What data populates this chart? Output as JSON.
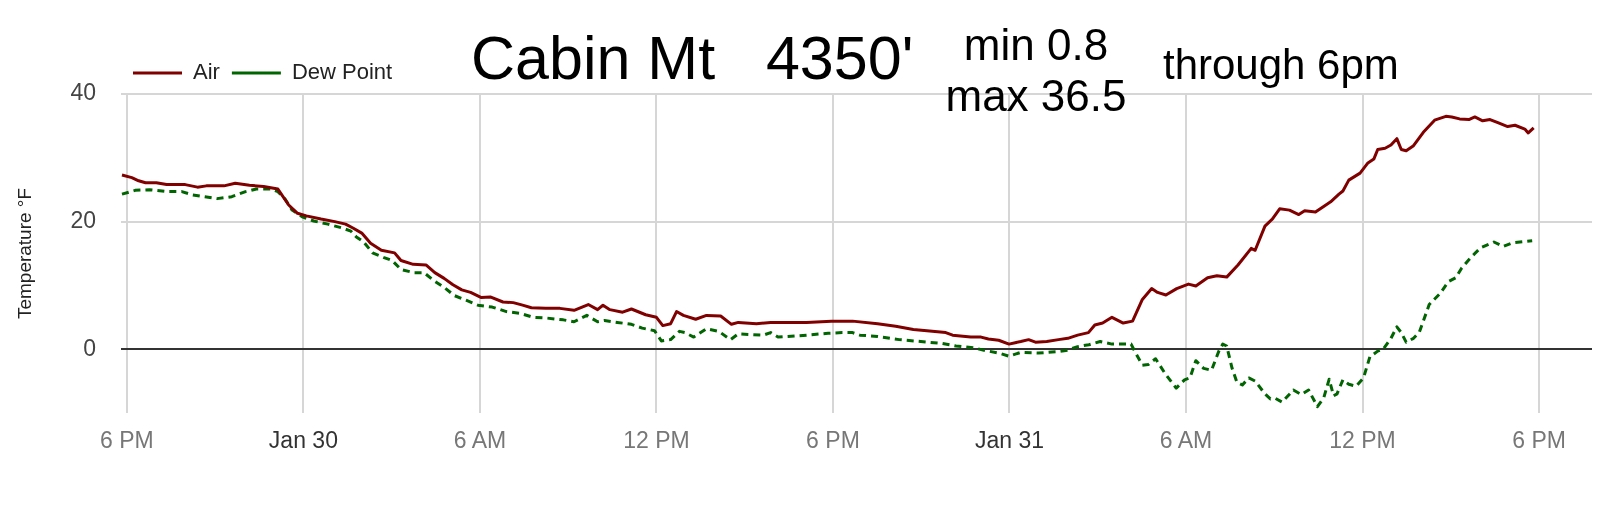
{
  "chart_data": {
    "type": "line",
    "title": "Cabin Mt   4350'",
    "subtitle": "through 6pm",
    "annotations": [
      "min 0.8",
      "max 36.5"
    ],
    "ylabel": "Temperature °F",
    "series": [
      {
        "name": "Air",
        "color": "#800000",
        "line_style": "solid",
        "x": [
          "--01-29T17:50",
          "--01-29T18:10",
          "--01-29T18:24",
          "--01-29T18:38",
          "--01-29T19:00",
          "--01-29T19:21",
          "--01-29T19:59",
          "--01-29T20:24",
          "--01-29T20:42",
          "--01-29T21:18",
          "--01-29T21:41",
          "--01-29T22:10",
          "--01-29T22:39",
          "--01-29T23:08",
          "--01-29T23:30",
          "--01-29T23:48",
          "--01-30T00:06",
          "--01-30T00:36",
          "--01-30T01:04",
          "--01-30T01:26",
          "--01-30T01:41",
          "--01-30T01:59",
          "--01-30T02:17",
          "--01-30T02:39",
          "--01-30T03:06",
          "--01-30T03:19",
          "--01-30T03:44",
          "--01-30T04:10",
          "--01-30T04:28",
          "--01-30T04:47",
          "--01-30T05:05",
          "--01-30T05:23",
          "--01-30T05:41",
          "--01-30T06:03",
          "--01-30T06:21",
          "--01-30T06:47",
          "--01-30T07:08",
          "--01-30T07:27",
          "--01-30T07:45",
          "--01-30T08:14",
          "--01-30T08:43",
          "--01-30T09:12",
          "--01-30T09:41",
          "--01-30T10:00",
          "--01-30T10:11",
          "--01-30T10:25",
          "--01-30T10:51",
          "--01-30T11:09",
          "--01-30T11:38",
          "--01-30T12:00",
          "--01-30T12:13",
          "--01-30T12:29",
          "--01-30T12:41",
          "--01-30T12:55",
          "--01-30T13:20",
          "--01-30T13:42",
          "--01-30T14:11",
          "--01-30T14:33",
          "--01-30T14:47",
          "--01-30T15:24",
          "--01-30T15:53",
          "--01-30T17:06",
          "--01-30T17:57",
          "--01-30T18:40",
          "--01-30T19:31",
          "--01-30T20:08",
          "--01-30T20:44",
          "--01-30T21:50",
          "--01-30T22:04",
          "--01-30T22:41",
          "--01-30T23:02",
          "--01-30T23:17",
          "--01-30T23:38",
          "--01-30T23:59",
          "--01-31T00:23",
          "--01-31T00:39",
          "--01-31T00:53",
          "--01-31T01:16",
          "--01-31T01:40",
          "--01-31T01:59",
          "--01-31T02:19",
          "--01-31T02:41",
          "--01-31T02:54",
          "--01-31T03:10",
          "--01-31T03:29",
          "--01-31T03:52",
          "--01-31T04:11",
          "--01-31T04:31",
          "--01-31T04:50",
          "--01-31T05:02",
          "--01-31T05:19",
          "--01-31T05:41",
          "--01-31T06:05",
          "--01-31T06:20",
          "--01-31T06:44",
          "--01-31T07:03",
          "--01-31T07:23",
          "--01-31T07:46",
          "--01-31T08:13",
          "--01-31T08:21",
          "--01-31T08:41",
          "--01-31T08:56",
          "--01-31T09:11",
          "--01-31T09:31",
          "--01-31T09:50",
          "--01-31T10:02",
          "--01-31T10:24",
          "--01-31T10:43",
          "--01-31T10:55",
          "--01-31T11:12",
          "--01-31T11:20",
          "--01-31T11:32",
          "--01-31T11:55",
          "--01-31T12:11",
          "--01-31T12:23",
          "--01-31T12:31",
          "--01-31T12:46",
          "--01-31T12:58",
          "--01-31T13:10",
          "--01-31T13:19",
          "--01-31T13:29",
          "--01-31T13:44",
          "--01-31T14:04",
          "--01-31T14:27",
          "--01-31T14:50",
          "--01-31T15:02",
          "--01-31T15:18",
          "--01-31T15:37",
          "--01-31T15:49",
          "--01-31T16:05",
          "--01-31T16:20",
          "--01-31T16:36",
          "--01-31T16:56",
          "--01-31T17:11",
          "--01-31T17:31",
          "--01-31T17:38",
          "--01-31T17:49"
        ],
        "values": [
          27.3,
          26.9,
          26.4,
          26.1,
          26.1,
          25.8,
          25.8,
          25.4,
          25.6,
          25.6,
          26.0,
          25.7,
          25.5,
          25.1,
          22.6,
          21.3,
          20.9,
          20.4,
          20.0,
          19.6,
          19.0,
          18.2,
          16.6,
          15.5,
          15.1,
          13.9,
          13.3,
          13.2,
          12.0,
          11.1,
          10.1,
          9.3,
          8.9,
          8.1,
          8.2,
          7.4,
          7.3,
          6.9,
          6.5,
          6.4,
          6.4,
          6.1,
          7.0,
          6.2,
          6.9,
          6.2,
          5.8,
          6.3,
          5.4,
          5.0,
          3.7,
          4.0,
          5.9,
          5.3,
          4.7,
          5.3,
          5.2,
          3.9,
          4.2,
          4.0,
          4.2,
          4.2,
          4.4,
          4.4,
          4.0,
          3.6,
          3.1,
          2.6,
          2.2,
          1.9,
          1.9,
          1.6,
          1.4,
          0.8,
          1.2,
          1.5,
          1.1,
          1.2,
          1.5,
          1.7,
          2.2,
          2.6,
          3.8,
          4.1,
          5.0,
          4.1,
          4.4,
          7.8,
          9.5,
          8.9,
          8.5,
          9.5,
          10.2,
          9.9,
          11.2,
          11.5,
          11.3,
          13.2,
          15.8,
          15.5,
          19.3,
          20.4,
          22.0,
          21.8,
          21.1,
          21.7,
          21.5,
          22.5,
          23.1,
          24.3,
          24.8,
          26.5,
          27.6,
          29.2,
          29.8,
          31.3,
          31.5,
          32.0,
          33.0,
          31.3,
          31.1,
          31.9,
          34.0,
          35.9,
          36.5,
          36.4,
          36.1,
          36.0,
          36.4,
          35.8,
          36.0,
          35.5,
          34.9,
          35.1,
          34.5,
          33.9,
          34.7
        ]
      },
      {
        "name": "Dew Point",
        "color": "#006400",
        "line_style": "dashed",
        "x": [
          "--01-29T17:50",
          "--01-29T18:17",
          "--01-29T18:46",
          "--01-29T19:22",
          "--01-29T19:52",
          "--01-29T20:13",
          "--01-29T20:39",
          "--01-29T21:04",
          "--01-29T21:34",
          "--01-29T22:02",
          "--01-29T22:24",
          "--01-29T22:53",
          "--01-29T23:08",
          "--01-29T23:23",
          "--01-29T23:37",
          "--01-29T23:59",
          "--01-30T00:21",
          "--01-30T00:50",
          "--01-30T01:19",
          "--01-30T01:37",
          "--01-30T01:48",
          "--01-30T02:03",
          "--01-30T02:21",
          "--01-30T02:43",
          "--01-30T03:01",
          "--01-30T03:19",
          "--01-30T03:45",
          "--01-30T04:06",
          "--01-30T04:25",
          "--01-30T04:47",
          "--01-30T05:08",
          "--01-30T05:34",
          "--01-30T05:56",
          "--01-30T06:25",
          "--01-30T06:54",
          "--01-30T07:23",
          "--01-30T07:49",
          "--01-30T08:14",
          "--01-30T08:50",
          "--01-30T09:12",
          "--01-30T09:38",
          "--01-30T10:00",
          "--01-30T10:14",
          "--01-30T10:40",
          "--01-30T11:09",
          "--01-30T11:31",
          "--01-30T11:56",
          "--01-30T12:10",
          "--01-30T12:29",
          "--01-30T12:47",
          "--01-30T12:58",
          "--01-30T13:16",
          "--01-30T13:42",
          "--01-30T14:07",
          "--01-30T14:31",
          "--01-30T14:47",
          "--01-30T15:38",
          "--01-30T15:53",
          "--01-30T16:08",
          "--01-30T17:06",
          "--01-30T17:50",
          "--01-30T18:19",
          "--01-30T18:40",
          "--01-30T18:55",
          "--01-30T19:31",
          "--01-30T20:15",
          "--01-30T20:59",
          "--01-30T21:43",
          "--01-30T22:11",
          "--01-30T22:48",
          "--01-30T23:10",
          "--01-30T23:38",
          "--01-30T23:59",
          "--01-31T00:23",
          "--01-31T00:59",
          "--01-31T01:35",
          "--01-31T01:55",
          "--01-31T02:19",
          "--01-31T02:42",
          "--01-31T03:05",
          "--01-31T03:29",
          "--01-31T04:08",
          "--01-31T04:16",
          "--01-31T04:31",
          "--01-31T04:43",
          "--01-31T04:58",
          "--01-31T05:18",
          "--01-31T05:40",
          "--01-31T05:57",
          "--01-31T06:08",
          "--01-31T06:20",
          "--01-31T06:36",
          "--01-31T06:52",
          "--01-31T07:07",
          "--01-31T07:15",
          "--01-31T07:23",
          "--01-31T07:34",
          "--01-31T07:44",
          "--01-31T07:55",
          "--01-31T08:08",
          "--01-31T08:21",
          "--01-31T08:41",
          "--01-31T08:52",
          "--01-31T09:02",
          "--01-31T09:16",
          "--01-31T09:39",
          "--01-31T09:55",
          "--01-31T10:10",
          "--01-31T10:28",
          "--01-31T10:41",
          "--01-31T10:52",
          "--01-31T11:01",
          "--01-31T11:08",
          "--01-31T11:20",
          "--01-31T11:32",
          "--01-31T11:47",
          "--01-31T12:02",
          "--01-31T12:15",
          "--01-31T12:31",
          "--01-31T12:42",
          "--01-31T12:58",
          "--01-31T13:10",
          "--01-31T13:19",
          "--01-31T13:29",
          "--01-31T13:44",
          "--01-31T13:56",
          "--01-31T14:16",
          "--01-31T14:39",
          "--01-31T14:55",
          "--01-31T15:10",
          "--01-31T15:22",
          "--01-31T15:41",
          "--01-31T16:01",
          "--01-31T16:28",
          "--01-31T16:47",
          "--01-31T17:07",
          "--01-31T17:46"
        ],
        "values": [
          24.3,
          24.9,
          25.0,
          24.7,
          24.7,
          24.2,
          23.9,
          23.6,
          23.9,
          24.7,
          25.1,
          25.1,
          24.7,
          23.5,
          21.8,
          20.7,
          20.1,
          19.6,
          19.0,
          18.5,
          17.6,
          16.8,
          15.1,
          14.4,
          13.9,
          12.5,
          12.0,
          12.0,
          10.8,
          9.7,
          8.4,
          7.6,
          6.9,
          6.6,
          5.9,
          5.6,
          5.0,
          4.9,
          4.6,
          4.3,
          5.3,
          4.3,
          4.5,
          4.2,
          3.9,
          3.3,
          2.9,
          1.3,
          1.5,
          2.8,
          2.6,
          1.9,
          3.2,
          2.8,
          1.5,
          2.4,
          2.2,
          2.6,
          1.9,
          2.2,
          2.5,
          2.6,
          2.6,
          2.2,
          2.0,
          1.5,
          1.2,
          0.9,
          0.5,
          0.2,
          -0.2,
          -0.6,
          -1.1,
          -0.5,
          -0.6,
          -0.4,
          -0.2,
          0.4,
          0.7,
          1.2,
          0.8,
          0.8,
          -0.4,
          -2.5,
          -2.4,
          -1.5,
          -3.9,
          -6.1,
          -4.8,
          -4.5,
          -1.8,
          -3.0,
          -3.3,
          -0.3,
          0.8,
          0.5,
          -3.0,
          -5.2,
          -5.6,
          -4.5,
          -5.0,
          -7.0,
          -7.8,
          -7.7,
          -8.3,
          -6.4,
          -7.1,
          -6.4,
          -9.0,
          -7.6,
          -4.7,
          -7.3,
          -7.0,
          -4.8,
          -5.5,
          -5.8,
          -4.5,
          -1.2,
          -0.3,
          0.0,
          1.7,
          3.5,
          2.6,
          1.1,
          1.7,
          2.7,
          7.0,
          8.8,
          10.6,
          11.2,
          12.7,
          14.4,
          15.9,
          16.8,
          16.1,
          16.7,
          17.0
        ]
      }
    ],
    "xlim": [
      "--01-29T17:48",
      "--01-31T19:48"
    ],
    "xticks": [
      {
        "value": "--01-29T18:00",
        "label": "6 PM"
      },
      {
        "value": "--01-30T00:00",
        "label": "Jan 30"
      },
      {
        "value": "--01-30T06:00",
        "label": "6 AM"
      },
      {
        "value": "--01-30T12:00",
        "label": "12 PM"
      },
      {
        "value": "--01-30T18:00",
        "label": "6 PM"
      },
      {
        "value": "--01-31T00:00",
        "label": "Jan 31"
      },
      {
        "value": "--01-31T06:00",
        "label": "6 AM"
      },
      {
        "value": "--01-31T12:00",
        "label": "12 PM"
      },
      {
        "value": "--01-31T18:00",
        "label": "6 PM"
      }
    ],
    "ylim": [
      -10,
      40
    ],
    "yticks": [
      0,
      20,
      40
    ],
    "grid": true,
    "legend": "top left",
    "marker": "none"
  }
}
